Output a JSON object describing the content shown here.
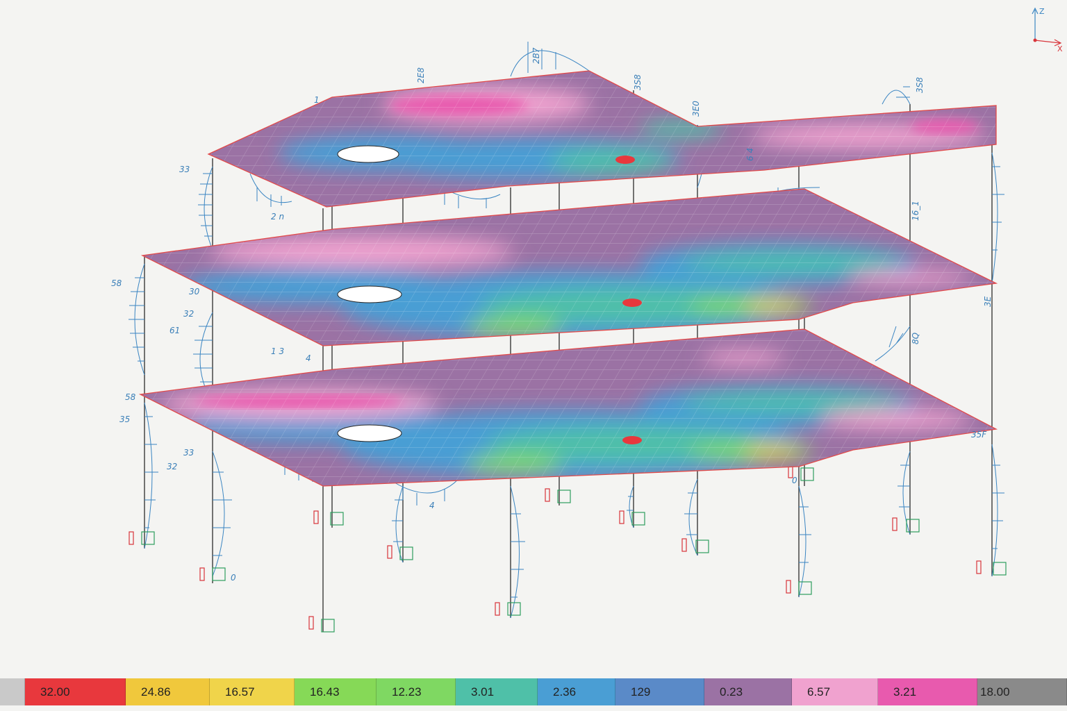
{
  "viewport": {
    "member_labels": [
      "33",
      "2 n",
      "58",
      "30",
      "61",
      "32",
      "58",
      "35",
      "33",
      "32",
      "1 3",
      "0",
      "4",
      "2B7",
      "2E8",
      "3S8",
      "3S8",
      "3E0",
      "6 4",
      "16_1",
      "8Q",
      "35F",
      "3E",
      "1",
      "0",
      "4"
    ]
  },
  "axis_triad": {
    "vertical_label": "Z",
    "horizontal_label": "X"
  },
  "legend": {
    "items": [
      {
        "label": "",
        "color": "#c9c9c9"
      },
      {
        "label": "32.00",
        "color": "#e8383d"
      },
      {
        "label": "24.86",
        "color": "#f0c83c"
      },
      {
        "label": "16.57",
        "color": "#f0d44a"
      },
      {
        "label": "16.43",
        "color": "#86d957"
      },
      {
        "label": "12.23",
        "color": "#7fd862"
      },
      {
        "label": "3.01",
        "color": "#4fc0a8"
      },
      {
        "label": "2.36",
        "color": "#4a9ed4"
      },
      {
        "label": "129",
        "color": "#5a8ac8"
      },
      {
        "label": "0.23",
        "color": "#9b72a4"
      },
      {
        "label": "6.57",
        "color": "#f0a2cf"
      },
      {
        "label": "3.21",
        "color": "#e85aae"
      },
      {
        "label": "18.00",
        "color": "#8a8a8a"
      }
    ]
  }
}
